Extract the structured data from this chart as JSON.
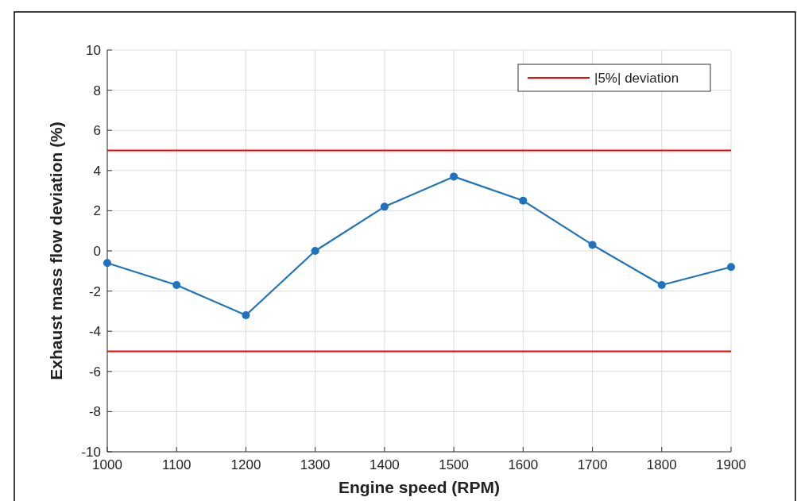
{
  "chart_data": {
    "type": "line",
    "xlabel": "Engine speed (RPM)",
    "ylabel": "Exhaust mass flow deviation (%)",
    "x": [
      1000,
      1100,
      1200,
      1300,
      1400,
      1500,
      1600,
      1700,
      1800,
      1900
    ],
    "series": [
      {
        "color": "#1f72bd",
        "values": [
          -0.6,
          -1.7,
          -3.2,
          0,
          2.2,
          3.7,
          2.5,
          0.3,
          -1.7,
          -0.8
        ]
      }
    ],
    "xlim": [
      1000,
      1900
    ],
    "xticks": [
      1000,
      1100,
      1200,
      1300,
      1400,
      1500,
      1600,
      1700,
      1800,
      1900
    ],
    "ylim": [
      -10,
      10
    ],
    "yticks": [
      -10,
      -8,
      -6,
      -4,
      -2,
      0,
      2,
      4,
      6,
      8,
      10
    ],
    "ref_lines": [
      {
        "axis": "y",
        "value": 5,
        "label": "|5%| deviation",
        "color": "#ff0000"
      },
      {
        "axis": "y",
        "value": -5,
        "color": "#ff0000"
      }
    ],
    "grid": true,
    "legend": "top right",
    "marker": "circle",
    "line_style": "solid"
  }
}
